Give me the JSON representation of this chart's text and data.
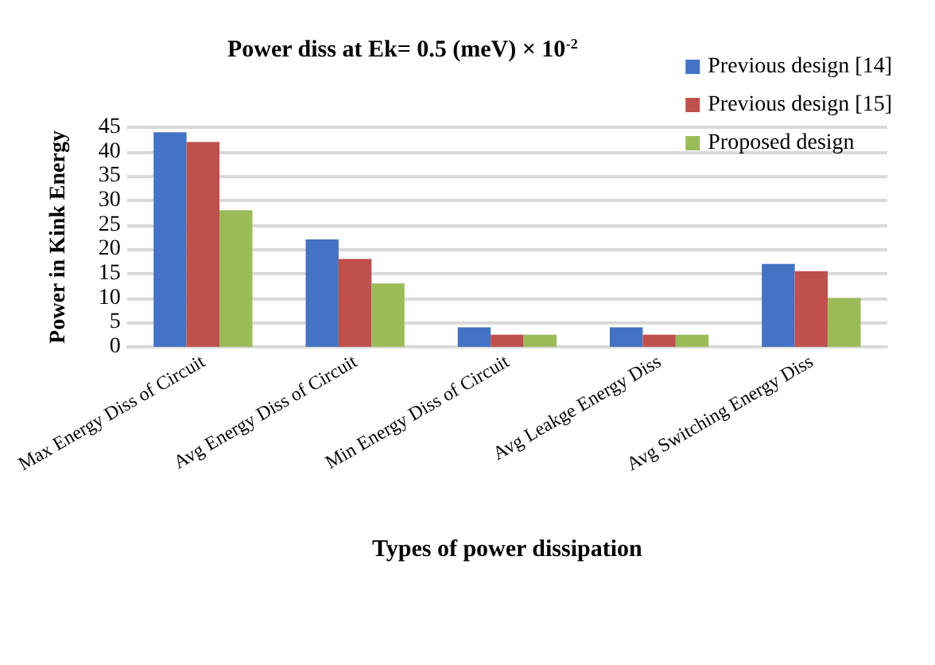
{
  "chart_data": {
    "type": "bar",
    "title": "Power diss at Ek= 0.5 (meV) × 10$^{-2}$",
    "xlabel": "Types of power dissipation",
    "ylabel": "Power in Kink Energy",
    "categories": [
      "Max Energy Diss of Circuit",
      "Avg Energy Diss of Circuit",
      "Min Energy Diss of Circuit",
      "Avg Leakge Energy Diss",
      "Avg Switching Energy Diss"
    ],
    "series": [
      {
        "name": "Previous design [14]",
        "color": "#4472c4",
        "values": [
          44,
          22,
          4,
          4,
          17
        ]
      },
      {
        "name": "Previous design [15]",
        "color": "#c0504d",
        "values": [
          42,
          18,
          2.5,
          2.5,
          15.5
        ]
      },
      {
        "name": "Proposed design",
        "color": "#9bbb59",
        "values": [
          28,
          13,
          2.5,
          2.5,
          10
        ]
      }
    ],
    "ylim": [
      0,
      45
    ],
    "yticks": [
      0,
      5,
      10,
      15,
      20,
      25,
      30,
      35,
      40,
      45
    ],
    "grid": "y",
    "legend": "top right"
  }
}
